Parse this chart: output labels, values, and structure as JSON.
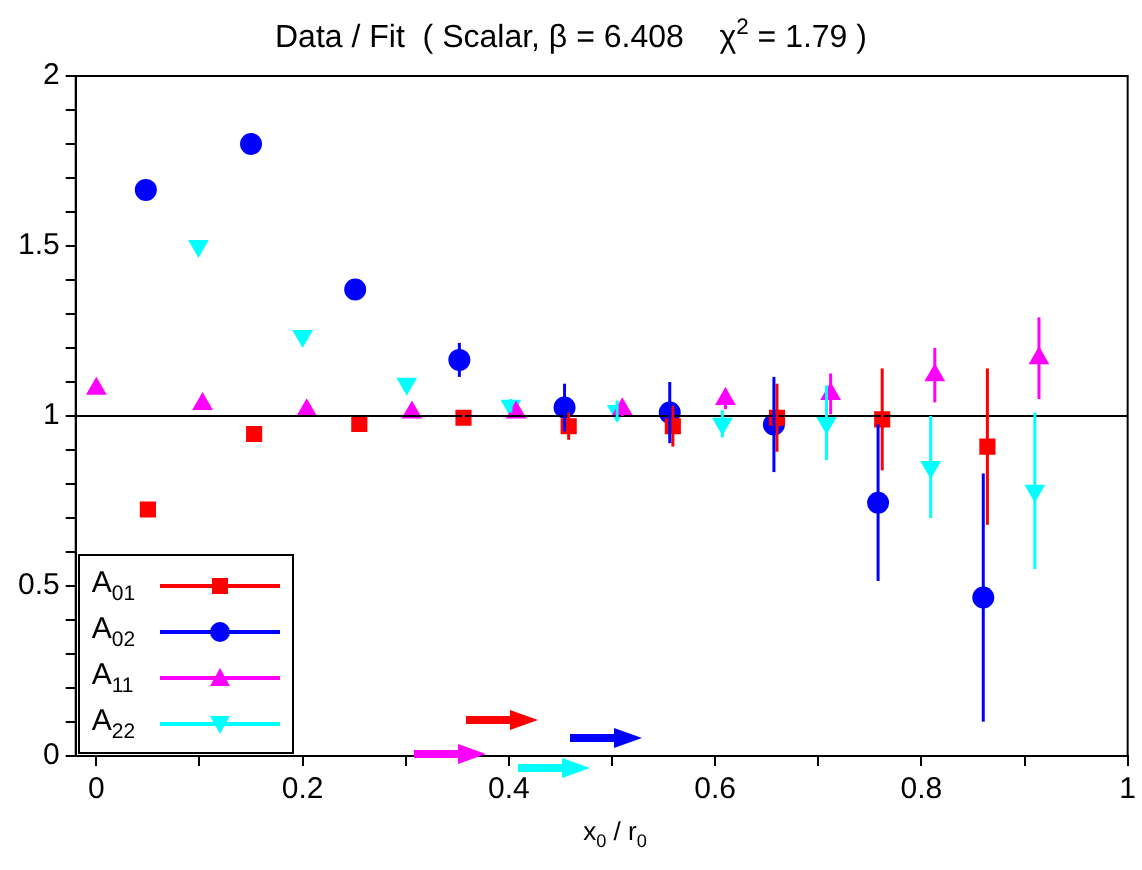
{
  "chart_data": {
    "type": "scatter",
    "title": "Data / Fit  ( Scalar, β = 6.408    χ$^{2}$ = 1.79 )",
    "xlabel": "x$_{0}$ / r$_{0}$",
    "xlim": [
      -0.02,
      1
    ],
    "xticks": [
      0,
      {
        "value": 0.1,
        "label": null
      },
      0.2,
      {
        "value": 0.3,
        "label": null
      },
      0.4,
      {
        "value": 0.5,
        "label": null
      },
      0.6,
      {
        "value": 0.7,
        "label": null
      },
      0.8,
      {
        "value": 0.9,
        "label": null
      },
      1
    ],
    "ylim": [
      0,
      2
    ],
    "yticks": [
      0,
      {
        "value": 0.1,
        "label": null
      },
      {
        "value": 0.2,
        "label": null
      },
      {
        "value": 0.3,
        "label": null
      },
      {
        "value": 0.4,
        "label": null
      },
      0.5,
      {
        "value": 0.6,
        "label": null
      },
      {
        "value": 0.7,
        "label": null
      },
      {
        "value": 0.8,
        "label": null
      },
      {
        "value": 0.9,
        "label": null
      },
      1,
      {
        "value": 1.1,
        "label": null
      },
      {
        "value": 1.2,
        "label": null
      },
      {
        "value": 1.3,
        "label": null
      },
      {
        "value": 1.4,
        "label": null
      },
      1.5,
      {
        "value": 1.6,
        "label": null
      },
      {
        "value": 1.7,
        "label": null
      },
      {
        "value": 1.8,
        "label": null
      },
      {
        "value": 1.9,
        "label": null
      },
      2
    ],
    "grid": false,
    "legend": "bottom left",
    "line_style": "solid",
    "ref_lines": [
      {
        "axis": "y",
        "value": 1,
        "color": "#000000"
      }
    ],
    "series": [
      {
        "name": "A$_{01}$",
        "color": "#ff0000",
        "marker": "square",
        "x": [
          0.05,
          0.153,
          0.255,
          0.356,
          0.458,
          0.559,
          0.66,
          0.762,
          0.864
        ],
        "values": [
          0.725,
          0.947,
          0.977,
          0.995,
          0.97,
          0.97,
          0.995,
          0.99,
          0.91
        ],
        "errors": [
          null,
          null,
          null,
          0.02,
          0.04,
          0.06,
          0.1,
          0.15,
          0.23
        ]
      },
      {
        "name": "A$_{02}$",
        "color": "#0000ff",
        "marker": "circle",
        "x": [
          0.048,
          0.15,
          0.251,
          0.352,
          0.454,
          0.556,
          0.657,
          0.758,
          0.86
        ],
        "values": [
          1.665,
          1.8,
          1.372,
          1.165,
          1.025,
          1.01,
          0.975,
          0.745,
          0.466
        ],
        "errors": [
          null,
          null,
          null,
          0.05,
          0.07,
          0.09,
          0.14,
          0.23,
          0.365
        ]
      },
      {
        "name": "A$_{11}$",
        "color": "#ff00ff",
        "marker": "triangle",
        "x": [
          0,
          0.103,
          0.204,
          0.306,
          0.407,
          0.51,
          0.61,
          0.712,
          0.813,
          0.914
        ],
        "values": [
          1.08,
          1.035,
          1.017,
          1.01,
          1.01,
          1.02,
          1.05,
          1.065,
          1.12,
          1.17
        ],
        "errors": [
          null,
          null,
          null,
          null,
          null,
          0.02,
          0.03,
          0.06,
          0.08,
          0.12
        ]
      },
      {
        "name": "A$_{22}$",
        "color": "#00ffff",
        "marker": "triangle_down",
        "x": [
          0.099,
          0.2,
          0.301,
          0.402,
          0.505,
          0.607,
          0.708,
          0.809,
          0.91
        ],
        "values": [
          1.5,
          1.235,
          1.095,
          1.03,
          1.015,
          0.977,
          0.98,
          0.85,
          0.78
        ],
        "errors": [
          null,
          null,
          null,
          0.02,
          0.03,
          0.04,
          0.11,
          0.15,
          0.23
        ]
      }
    ]
  }
}
